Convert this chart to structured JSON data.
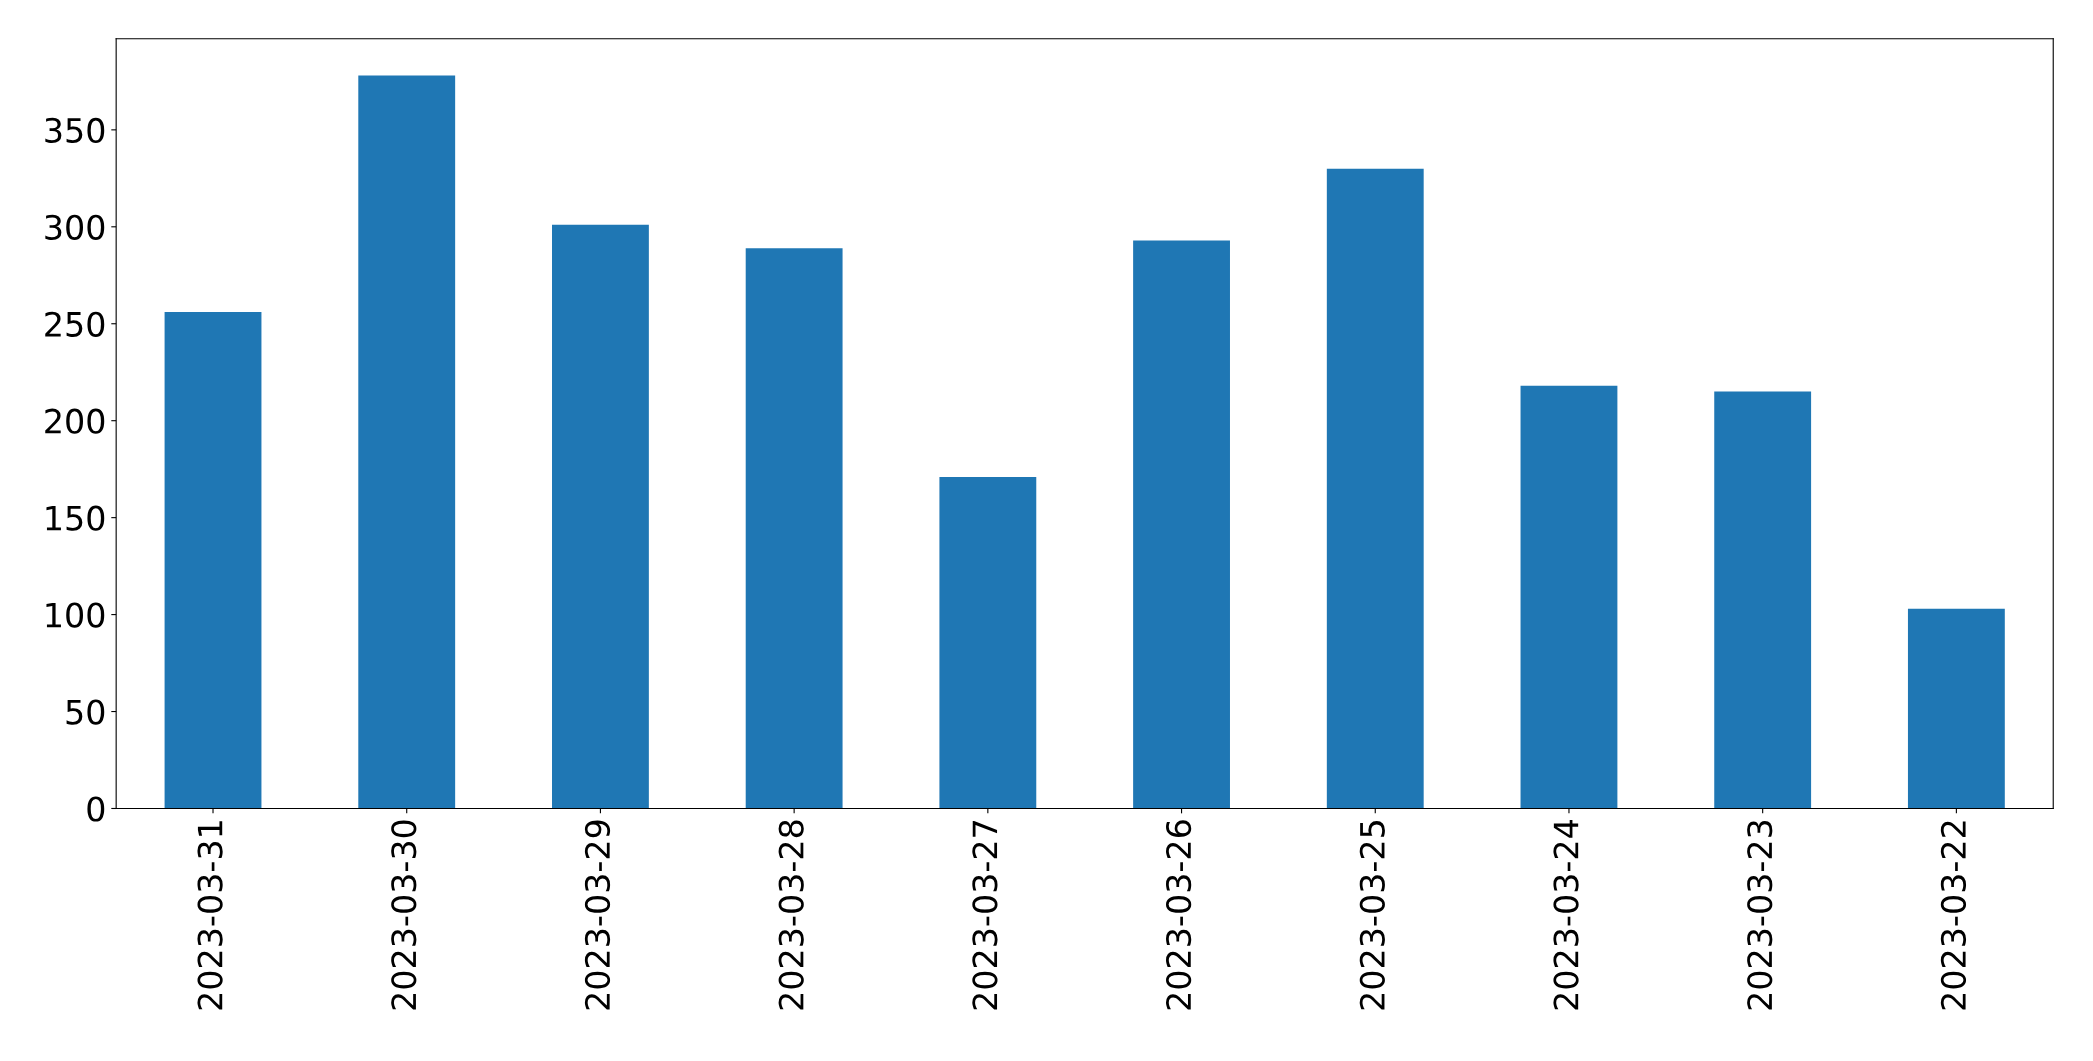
{
  "chart_data": {
    "type": "bar",
    "categories": [
      "2023-03-31",
      "2023-03-30",
      "2023-03-29",
      "2023-03-28",
      "2023-03-27",
      "2023-03-26",
      "2023-03-25",
      "2023-03-24",
      "2023-03-23",
      "2023-03-22"
    ],
    "values": [
      256,
      378,
      301,
      289,
      171,
      293,
      330,
      218,
      215,
      103
    ],
    "color": "#1f77b4",
    "ylim": [
      0,
      397
    ],
    "yticks": [
      0,
      50,
      100,
      150,
      200,
      250,
      300,
      350
    ],
    "grid": false,
    "legend": false
  }
}
